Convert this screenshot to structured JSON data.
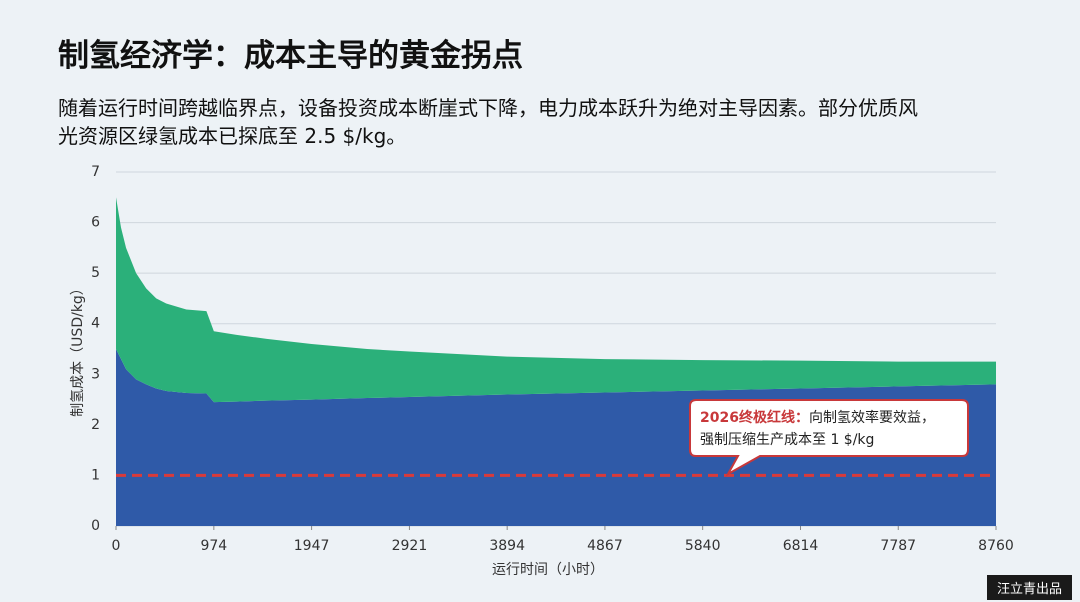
{
  "chart_data": {
    "type": "stacked_area",
    "title": "制氢经济学：成本主导的黄金拐点",
    "subtitle": [
      "随着运行时间跨越临界点，设备投资成本断崖式下降，电力成本跃升为绝对主导因素。部分优质风",
      "光资源区绿氢成本已探底至 2.5 $/kg。"
    ],
    "x_label": "运行时间（小时）",
    "y_label": "制氢成本（USD/kg）",
    "x": [
      0,
      50,
      100,
      200,
      300,
      400,
      500,
      700,
      900,
      974,
      1200,
      1500,
      1947,
      2500,
      2921,
      3894,
      4867,
      5840,
      6814,
      7787,
      8760
    ],
    "series": [
      {
        "color": "#2f5aa8",
        "values": [
          3.5,
          3.3,
          3.1,
          2.9,
          2.8,
          2.72,
          2.67,
          2.63,
          2.62,
          2.45,
          2.46,
          2.48,
          2.5,
          2.53,
          2.55,
          2.6,
          2.64,
          2.68,
          2.72,
          2.76,
          2.8
        ]
      },
      {
        "color": "#2bb07a",
        "values": [
          3.0,
          2.6,
          2.4,
          2.1,
          1.9,
          1.78,
          1.73,
          1.65,
          1.63,
          1.4,
          1.32,
          1.22,
          1.1,
          0.97,
          0.9,
          0.75,
          0.66,
          0.6,
          0.55,
          0.49,
          0.45
        ]
      }
    ],
    "xlim": [
      0,
      8760
    ],
    "xticks": [
      0,
      974,
      1947,
      2921,
      3894,
      4867,
      5840,
      6814,
      7787,
      8760
    ],
    "ylim": [
      0,
      7
    ],
    "yticks": [
      0,
      1,
      2,
      3,
      4,
      5,
      6,
      7
    ],
    "grid": true,
    "reference_line": {
      "value": 1,
      "color": "#d93a3a"
    },
    "annotation": {
      "label": "2026终极红线：",
      "lines": [
        "向制氢效率要效益，",
        "强制压缩生产成本至 1 $/kg"
      ]
    }
  },
  "watermark": "汪立青出品"
}
